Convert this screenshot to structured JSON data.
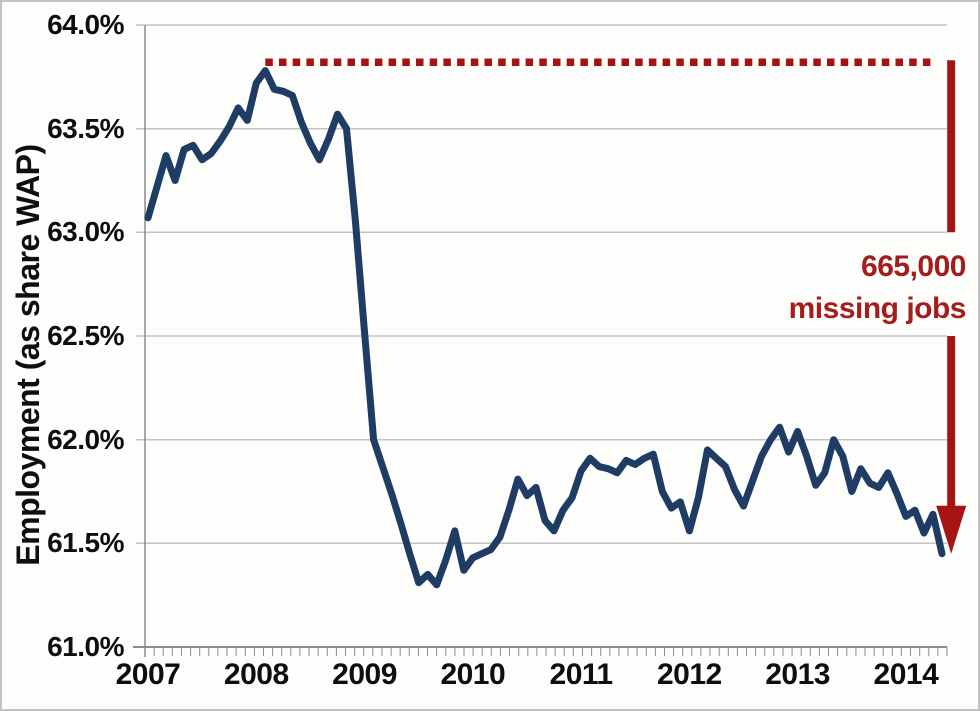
{
  "chart_data": {
    "type": "line",
    "title": "",
    "ylabel": "Employment (as share WAP)",
    "x_start": "2007-01",
    "frequency": "monthly",
    "x_tick_labels": [
      "2007",
      "2008",
      "2009",
      "2010",
      "2011",
      "2012",
      "2013",
      "2014"
    ],
    "y_tick_labels": [
      "64.0%",
      "63.5%",
      "63.0%",
      "62.5%",
      "62.0%",
      "61.5%",
      "61.0%"
    ],
    "y_tick_values": [
      64.0,
      63.5,
      63.0,
      62.5,
      62.0,
      61.5,
      61.0
    ],
    "ylim": [
      61.0,
      64.0
    ],
    "grid": true,
    "legend": "none",
    "series": [
      {
        "name": "Employment as share of working-age population",
        "color": "#1f3c64",
        "values": [
          63.07,
          63.22,
          63.37,
          63.25,
          63.4,
          63.42,
          63.35,
          63.38,
          63.44,
          63.51,
          63.6,
          63.54,
          63.72,
          63.78,
          63.69,
          63.68,
          63.66,
          63.53,
          63.43,
          63.35,
          63.45,
          63.57,
          63.5,
          63.05,
          62.52,
          62.0,
          61.87,
          61.74,
          61.6,
          61.45,
          61.31,
          61.35,
          61.3,
          61.42,
          61.56,
          61.37,
          61.43,
          61.45,
          61.47,
          61.53,
          61.66,
          61.81,
          61.73,
          61.77,
          61.61,
          61.56,
          61.66,
          61.72,
          61.85,
          61.91,
          61.87,
          61.86,
          61.84,
          61.9,
          61.88,
          61.91,
          61.93,
          61.75,
          61.67,
          61.7,
          61.56,
          61.72,
          61.95,
          61.91,
          61.87,
          61.76,
          61.68,
          61.8,
          61.92,
          62.0,
          62.06,
          61.94,
          62.04,
          61.92,
          61.78,
          61.84,
          62.0,
          61.92,
          61.75,
          61.86,
          61.79,
          61.77,
          61.84,
          61.74,
          61.63,
          61.66,
          61.55,
          61.64,
          61.45
        ]
      }
    ],
    "reference_line": {
      "value": 63.82,
      "style": "dotted",
      "color": "#a41414",
      "start_index": 13
    },
    "gap_annotation": {
      "line1": "665,000",
      "line2": "missing jobs",
      "color": "#a41d1d",
      "bar_top_value": 63.83,
      "bar_bottom_value": 63.0,
      "arrow_top_value": 62.5,
      "arrow_tip_value": 61.45
    }
  },
  "colors": {
    "grid": "#c3c3c3",
    "axis": "#8c8c8c",
    "text": "#0e0e0e",
    "background": "#fdfdfc"
  }
}
